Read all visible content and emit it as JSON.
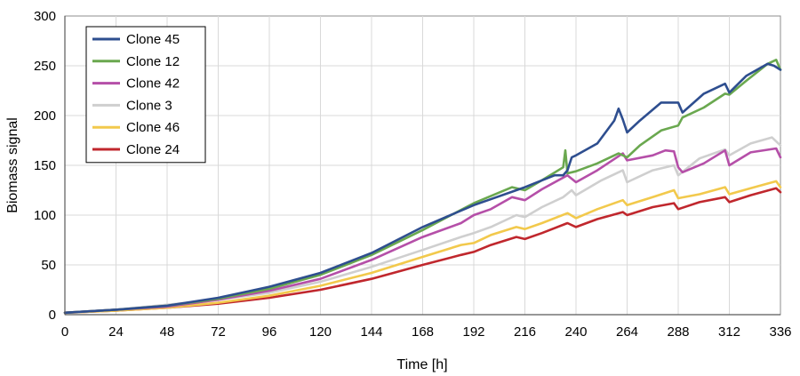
{
  "chart_data": {
    "type": "line",
    "title": "",
    "xlabel": "Time [h]",
    "ylabel": "Biomass signal",
    "xlim": [
      0,
      336
    ],
    "ylim": [
      0,
      300
    ],
    "xticks": [
      0,
      24,
      48,
      72,
      96,
      120,
      144,
      168,
      192,
      216,
      240,
      264,
      288,
      312,
      336
    ],
    "yticks": [
      0,
      50,
      100,
      150,
      200,
      250,
      300
    ],
    "grid": true,
    "legend_position": "top-left",
    "series": [
      {
        "name": "Clone 45",
        "color": "#2e4e8f",
        "points": [
          [
            0,
            2
          ],
          [
            24,
            5
          ],
          [
            48,
            9
          ],
          [
            72,
            17
          ],
          [
            96,
            28
          ],
          [
            120,
            42
          ],
          [
            144,
            62
          ],
          [
            168,
            88
          ],
          [
            192,
            110
          ],
          [
            216,
            128
          ],
          [
            230,
            140
          ],
          [
            234,
            140
          ],
          [
            236,
            145
          ],
          [
            238,
            158
          ],
          [
            240,
            160
          ],
          [
            250,
            172
          ],
          [
            258,
            195
          ],
          [
            260,
            207
          ],
          [
            262,
            196
          ],
          [
            264,
            183
          ],
          [
            270,
            195
          ],
          [
            280,
            213
          ],
          [
            288,
            213
          ],
          [
            290,
            203
          ],
          [
            300,
            222
          ],
          [
            310,
            232
          ],
          [
            312,
            223
          ],
          [
            320,
            240
          ],
          [
            330,
            252
          ],
          [
            333,
            250
          ],
          [
            336,
            246
          ]
        ]
      },
      {
        "name": "Clone 12",
        "color": "#6aa84f",
        "points": [
          [
            0,
            2
          ],
          [
            24,
            5
          ],
          [
            48,
            9
          ],
          [
            72,
            16
          ],
          [
            96,
            26
          ],
          [
            120,
            40
          ],
          [
            144,
            60
          ],
          [
            168,
            85
          ],
          [
            192,
            112
          ],
          [
            210,
            128
          ],
          [
            216,
            125
          ],
          [
            224,
            135
          ],
          [
            234,
            148
          ],
          [
            235,
            165
          ],
          [
            236,
            142
          ],
          [
            240,
            144
          ],
          [
            250,
            152
          ],
          [
            260,
            162
          ],
          [
            264,
            158
          ],
          [
            270,
            170
          ],
          [
            280,
            185
          ],
          [
            288,
            190
          ],
          [
            290,
            198
          ],
          [
            300,
            208
          ],
          [
            310,
            222
          ],
          [
            312,
            221
          ],
          [
            320,
            235
          ],
          [
            330,
            252
          ],
          [
            334,
            256
          ],
          [
            336,
            246
          ]
        ]
      },
      {
        "name": "Clone 42",
        "color": "#b54fa8",
        "points": [
          [
            0,
            2
          ],
          [
            24,
            5
          ],
          [
            48,
            8
          ],
          [
            72,
            15
          ],
          [
            96,
            24
          ],
          [
            120,
            36
          ],
          [
            144,
            55
          ],
          [
            168,
            78
          ],
          [
            186,
            92
          ],
          [
            192,
            100
          ],
          [
            200,
            106
          ],
          [
            210,
            118
          ],
          [
            216,
            115
          ],
          [
            224,
            126
          ],
          [
            236,
            140
          ],
          [
            240,
            133
          ],
          [
            250,
            145
          ],
          [
            262,
            162
          ],
          [
            264,
            155
          ],
          [
            276,
            160
          ],
          [
            282,
            165
          ],
          [
            286,
            164
          ],
          [
            288,
            148
          ],
          [
            290,
            143
          ],
          [
            300,
            152
          ],
          [
            310,
            165
          ],
          [
            312,
            150
          ],
          [
            322,
            163
          ],
          [
            334,
            167
          ],
          [
            336,
            158
          ]
        ]
      },
      {
        "name": "Clone 3",
        "color": "#cfcfcf",
        "points": [
          [
            0,
            2
          ],
          [
            24,
            5
          ],
          [
            48,
            10
          ],
          [
            72,
            15
          ],
          [
            96,
            22
          ],
          [
            120,
            33
          ],
          [
            144,
            48
          ],
          [
            168,
            65
          ],
          [
            186,
            78
          ],
          [
            192,
            82
          ],
          [
            200,
            88
          ],
          [
            212,
            100
          ],
          [
            216,
            98
          ],
          [
            224,
            108
          ],
          [
            234,
            118
          ],
          [
            238,
            125
          ],
          [
            240,
            120
          ],
          [
            252,
            135
          ],
          [
            262,
            145
          ],
          [
            264,
            133
          ],
          [
            276,
            145
          ],
          [
            286,
            150
          ],
          [
            288,
            140
          ],
          [
            298,
            157
          ],
          [
            310,
            166
          ],
          [
            312,
            160
          ],
          [
            322,
            172
          ],
          [
            332,
            178
          ],
          [
            336,
            170
          ]
        ]
      },
      {
        "name": "Clone 46",
        "color": "#f2c94c",
        "points": [
          [
            0,
            2
          ],
          [
            24,
            4
          ],
          [
            48,
            7
          ],
          [
            72,
            12
          ],
          [
            96,
            19
          ],
          [
            120,
            29
          ],
          [
            144,
            42
          ],
          [
            168,
            58
          ],
          [
            186,
            70
          ],
          [
            192,
            72
          ],
          [
            200,
            80
          ],
          [
            212,
            88
          ],
          [
            216,
            86
          ],
          [
            224,
            92
          ],
          [
            236,
            102
          ],
          [
            240,
            97
          ],
          [
            250,
            106
          ],
          [
            262,
            115
          ],
          [
            264,
            110
          ],
          [
            276,
            118
          ],
          [
            286,
            125
          ],
          [
            288,
            117
          ],
          [
            298,
            121
          ],
          [
            310,
            128
          ],
          [
            312,
            121
          ],
          [
            322,
            127
          ],
          [
            334,
            134
          ],
          [
            336,
            128
          ]
        ]
      },
      {
        "name": "Clone 24",
        "color": "#c0272d",
        "points": [
          [
            0,
            2
          ],
          [
            24,
            4
          ],
          [
            48,
            7
          ],
          [
            72,
            11
          ],
          [
            96,
            17
          ],
          [
            120,
            25
          ],
          [
            144,
            36
          ],
          [
            168,
            50
          ],
          [
            186,
            60
          ],
          [
            192,
            63
          ],
          [
            200,
            70
          ],
          [
            212,
            78
          ],
          [
            216,
            76
          ],
          [
            224,
            82
          ],
          [
            236,
            92
          ],
          [
            240,
            88
          ],
          [
            250,
            96
          ],
          [
            262,
            103
          ],
          [
            264,
            100
          ],
          [
            276,
            108
          ],
          [
            286,
            112
          ],
          [
            288,
            106
          ],
          [
            298,
            113
          ],
          [
            310,
            118
          ],
          [
            312,
            113
          ],
          [
            322,
            120
          ],
          [
            334,
            127
          ],
          [
            336,
            123
          ]
        ]
      }
    ]
  }
}
